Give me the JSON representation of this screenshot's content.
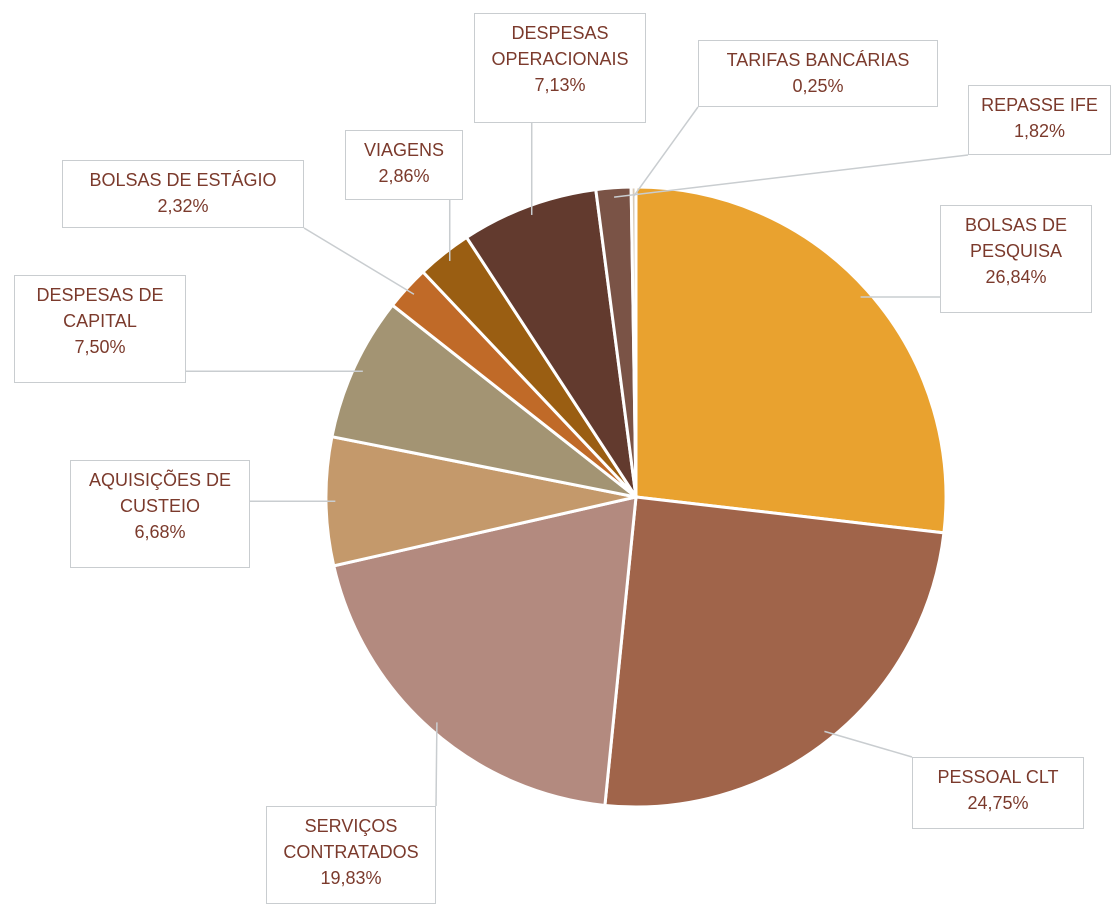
{
  "chart_data": {
    "type": "pie",
    "categories": [
      "BOLSAS DE PESQUISA",
      "PESSOAL CLT",
      "SERVIÇOS CONTRATADOS",
      "AQUISIÇÕES DE CUSTEIO",
      "DESPESAS DE CAPITAL",
      "BOLSAS DE ESTÁGIO",
      "VIAGENS",
      "DESPESAS OPERACIONAIS",
      "REPASSE IFE",
      "TARIFAS BANCÁRIAS"
    ],
    "values": [
      26.84,
      24.75,
      19.83,
      6.68,
      7.5,
      2.32,
      2.86,
      7.13,
      1.82,
      0.25
    ],
    "value_labels": [
      "26,84%",
      "24,75%",
      "19,83%",
      "6,68%",
      "7,50%",
      "2,32%",
      "2,86%",
      "7,13%",
      "1,82%",
      "0,25%"
    ],
    "colors": [
      "#e9a22f",
      "#a0644a",
      "#b38a7f",
      "#c4996b",
      "#a39473",
      "#c06a28",
      "#9a5e12",
      "#623a2e",
      "#7a5346",
      "#d9cbb8"
    ]
  }
}
